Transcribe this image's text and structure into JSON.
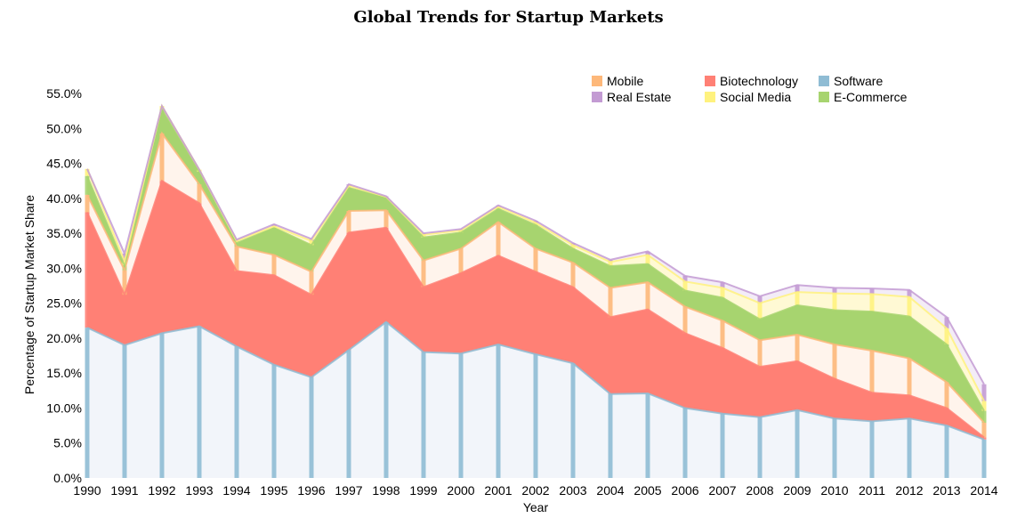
{
  "chart_data": {
    "type": "area",
    "title": "Global Trends for Startup Markets",
    "xlabel": "Year",
    "ylabel": "Percentage of Startup Market Share",
    "x": [
      1990,
      1991,
      1992,
      1993,
      1994,
      1995,
      1996,
      1997,
      1998,
      1999,
      2000,
      2001,
      2002,
      2003,
      2004,
      2005,
      2006,
      2007,
      2008,
      2009,
      2010,
      2011,
      2012,
      2013,
      2014
    ],
    "ylim": [
      0,
      55
    ],
    "yticks": [
      "0.0%",
      "5.0%",
      "10.0%",
      "15.0%",
      "20.0%",
      "25.0%",
      "30.0%",
      "35.0%",
      "40.0%",
      "45.0%",
      "50.0%",
      "55.0%"
    ],
    "legend_position": "top-right",
    "stacked": true,
    "series": [
      {
        "name": "Software",
        "color": "#8fbcd4",
        "fill": "#f2f5fa",
        "values": [
          21.5,
          19.0,
          20.7,
          21.7,
          18.8,
          16.2,
          14.4,
          18.3,
          22.3,
          18.0,
          17.8,
          19.1,
          17.7,
          16.4,
          12.0,
          12.1,
          10.0,
          9.2,
          8.7,
          9.7,
          8.5,
          8.1,
          8.5,
          7.5,
          5.5
        ]
      },
      {
        "name": "Biotechnology",
        "color": "#ff8075",
        "fill": "#ff8075",
        "values": [
          16.5,
          7.2,
          21.8,
          17.6,
          10.8,
          12.8,
          11.8,
          16.8,
          13.5,
          9.3,
          11.5,
          12.7,
          11.8,
          10.9,
          11.0,
          12.0,
          10.7,
          9.4,
          7.2,
          7.0,
          5.7,
          4.1,
          3.3,
          2.5,
          0.3
        ]
      },
      {
        "name": "Mobile",
        "color": "#fdb87a",
        "fill": "#fff4ec",
        "values": [
          2.5,
          3.5,
          6.8,
          2.7,
          3.5,
          2.9,
          3.3,
          3.1,
          2.5,
          3.8,
          3.5,
          4.8,
          3.3,
          3.5,
          4.2,
          3.9,
          3.8,
          3.9,
          3.8,
          3.8,
          4.9,
          6.0,
          5.3,
          3.7,
          2.1
        ]
      },
      {
        "name": "E-Commerce",
        "color": "#a7d46f",
        "fill": "#a7d46f",
        "values": [
          2.7,
          0.7,
          3.4,
          1.8,
          0.5,
          3.9,
          3.8,
          3.3,
          1.8,
          3.3,
          2.3,
          1.9,
          3.4,
          2.0,
          3.1,
          2.6,
          2.3,
          3.3,
          3.0,
          4.2,
          4.9,
          5.6,
          6.0,
          5.4,
          1.7
        ]
      },
      {
        "name": "Social Media",
        "color": "#fff27e",
        "fill": "#fff9d4",
        "values": [
          1.0,
          0.6,
          0.5,
          0.3,
          0.3,
          0.2,
          0.6,
          0.3,
          0.1,
          0.4,
          0.3,
          0.3,
          0.3,
          0.5,
          0.6,
          1.3,
          1.3,
          1.4,
          2.3,
          1.9,
          2.4,
          2.5,
          2.8,
          2.3,
          1.4
        ]
      },
      {
        "name": "Real Estate",
        "color": "#c39bd3",
        "fill": "#f3ecf7",
        "values": [
          0.0,
          1.1,
          0.0,
          0.0,
          0.2,
          0.3,
          0.3,
          0.2,
          0.1,
          0.2,
          0.2,
          0.2,
          0.3,
          0.3,
          0.3,
          0.5,
          0.8,
          0.8,
          1.0,
          1.0,
          0.8,
          0.8,
          1.0,
          1.6,
          2.4
        ]
      }
    ],
    "legend_order": [
      "Mobile",
      "Biotechnology",
      "Software",
      "Real Estate",
      "Social Media",
      "E-Commerce"
    ]
  }
}
